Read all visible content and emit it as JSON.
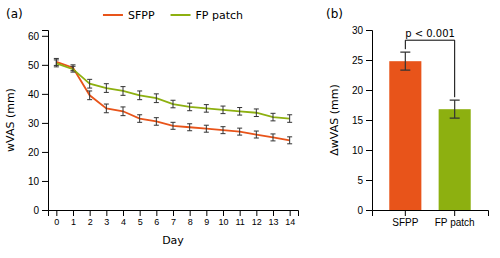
{
  "chart_data": [
    {
      "type": "line",
      "title": "(a)",
      "x": [
        0,
        1,
        2,
        3,
        4,
        5,
        6,
        7,
        8,
        9,
        10,
        11,
        12,
        13,
        14
      ],
      "xlabel": "Day",
      "ylabel": "wVAS (mm)",
      "xlim": [
        -0.5,
        14.5
      ],
      "xticks": [
        0,
        1,
        2,
        3,
        4,
        5,
        6,
        7,
        8,
        9,
        10,
        11,
        12,
        13,
        14
      ],
      "ylim": [
        0,
        62
      ],
      "yticks": [
        0,
        10,
        20,
        30,
        40,
        50,
        60
      ],
      "grid": false,
      "legend": "top",
      "series": [
        {
          "name": "SFPP",
          "color": "#E8541A",
          "values": [
            51.0,
            49.0,
            39.5,
            35.0,
            34.0,
            31.5,
            30.5,
            29.0,
            28.5,
            28.0,
            27.5,
            27.0,
            26.0,
            25.0,
            24.0
          ],
          "errors": [
            1.2,
            1.0,
            1.5,
            1.5,
            1.5,
            1.3,
            1.3,
            1.2,
            1.2,
            1.2,
            1.2,
            1.2,
            1.2,
            1.2,
            1.2
          ]
        },
        {
          "name": "FP patch",
          "color": "#8DB010",
          "values": [
            50.5,
            48.5,
            43.5,
            42.0,
            41.0,
            39.5,
            38.5,
            36.5,
            35.5,
            35.0,
            34.5,
            34.0,
            33.5,
            32.0,
            31.5
          ],
          "errors": [
            1.2,
            1.0,
            1.5,
            1.5,
            1.5,
            1.5,
            1.5,
            1.3,
            1.3,
            1.3,
            1.3,
            1.3,
            1.3,
            1.3,
            1.3
          ]
        }
      ]
    },
    {
      "type": "bar",
      "title": "(b)",
      "categories": [
        "SFPP",
        "FP patch"
      ],
      "values": [
        24.8,
        16.8
      ],
      "errors": [
        1.5,
        1.5
      ],
      "colors": [
        "#E8541A",
        "#8DB010"
      ],
      "ylabel": "ΔwVAS (mm)",
      "ylim": [
        0,
        30
      ],
      "yticks": [
        0,
        5,
        10,
        15,
        20,
        25,
        30
      ],
      "grid": false,
      "annotations": [
        "p < 0.001"
      ]
    }
  ]
}
